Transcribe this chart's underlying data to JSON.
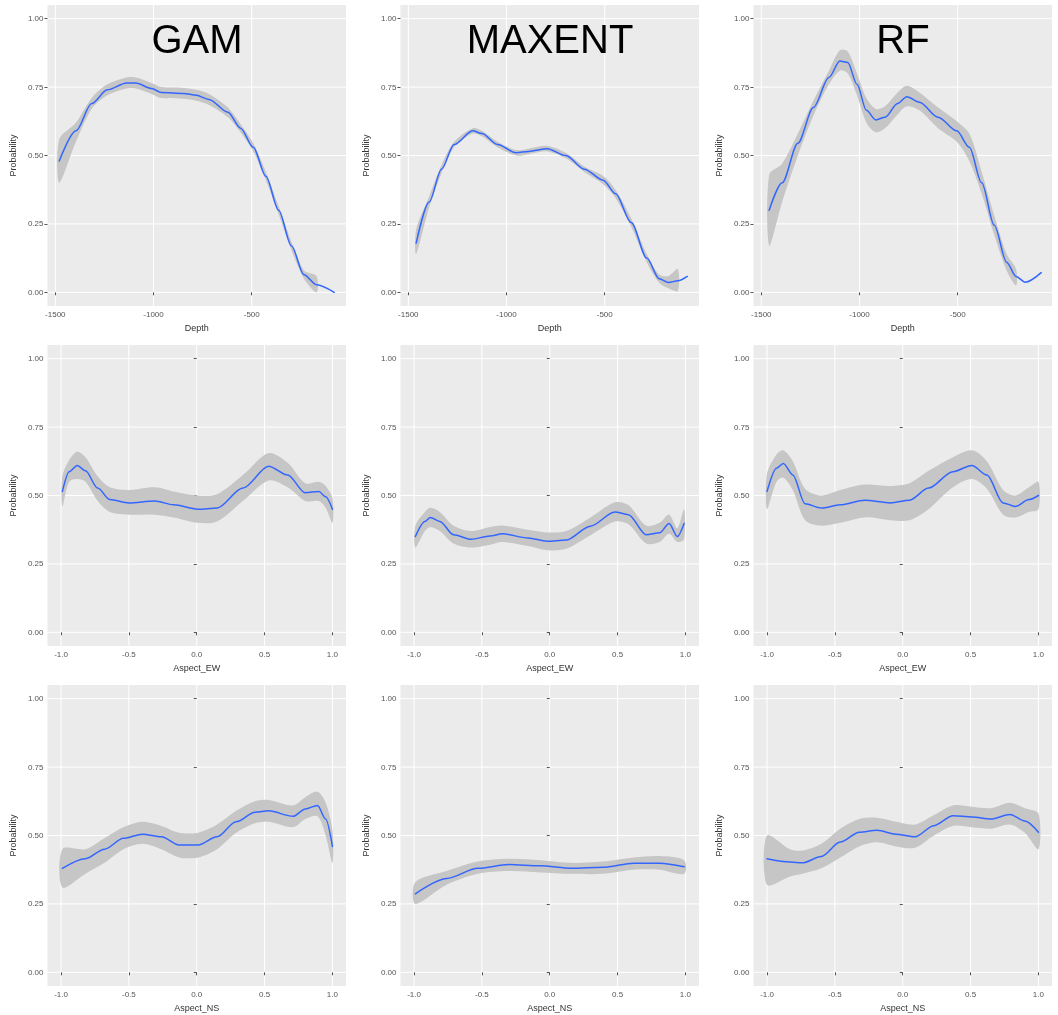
{
  "chart_data": [
    {
      "type": "line",
      "title": "GAM",
      "xlabel": "Depth",
      "ylabel": "Probability",
      "xlim": [
        -1540,
        -20
      ],
      "xticks": [
        -1500,
        -1000,
        -500
      ],
      "ylim": [
        -0.05,
        1.05
      ],
      "yticks": [
        {
          "value": 0,
          "label": "0.00"
        },
        {
          "value": 0.25,
          "label": "0.25"
        },
        {
          "value": 0.5,
          "label": "0.50"
        },
        {
          "value": 0.75,
          "label": "0.75"
        },
        {
          "value": 1,
          "label": "1.00"
        }
      ],
      "grid": true,
      "marker": "none",
      "x": [
        -1480,
        -1395,
        -1315,
        -1235,
        -1137,
        -1090,
        -1010,
        -960,
        -847,
        -782,
        -718,
        -621,
        -557,
        -492,
        -428,
        -363,
        -298,
        -234,
        -170,
        -80
      ],
      "series": [
        {
          "color": "#3366ff",
          "values": [
            0.48,
            0.59,
            0.69,
            0.74,
            0.765,
            0.765,
            0.745,
            0.73,
            0.727,
            0.72,
            0.705,
            0.658,
            0.6,
            0.53,
            0.424,
            0.3,
            0.17,
            0.064,
            0.028,
            0
          ],
          "lower": [
            0.4,
            0.55,
            0.67,
            0.72,
            0.745,
            0.745,
            0.725,
            0.71,
            0.707,
            0.7,
            0.685,
            0.64,
            0.585,
            0.515,
            0.41,
            0.285,
            0.155,
            0.05,
            0,
            null
          ],
          "upper": [
            0.56,
            0.62,
            0.71,
            0.76,
            0.785,
            0.785,
            0.765,
            0.75,
            0.747,
            0.74,
            0.725,
            0.675,
            0.615,
            0.545,
            0.44,
            0.315,
            0.185,
            0.08,
            0.06,
            null
          ]
        }
      ]
    },
    {
      "type": "line",
      "title": "MAXENT",
      "xlabel": "Depth",
      "ylabel": "Probability",
      "xlim": [
        -1540,
        -20
      ],
      "xticks": [
        -1500,
        -1000,
        -500
      ],
      "ylim": [
        -0.05,
        1.05
      ],
      "yticks": [
        {
          "value": 0,
          "label": "0.00"
        },
        {
          "value": 0.25,
          "label": "0.25"
        },
        {
          "value": 0.5,
          "label": "0.50"
        },
        {
          "value": 0.75,
          "label": "0.75"
        },
        {
          "value": 1,
          "label": "1.00"
        }
      ],
      "grid": true,
      "marker": "none",
      "x": [
        -1460,
        -1394,
        -1331,
        -1267,
        -1172,
        -1125,
        -1046,
        -951,
        -888,
        -793,
        -698,
        -604,
        -508,
        -445,
        -365,
        -286,
        -223,
        -175,
        -128,
        -80
      ],
      "series": [
        {
          "color": "#3366ff",
          "values": [
            0.18,
            0.33,
            0.45,
            0.54,
            0.59,
            0.58,
            0.54,
            0.51,
            0.515,
            0.525,
            0.5,
            0.45,
            0.41,
            0.36,
            0.255,
            0.125,
            0.05,
            0.036,
            0.042,
            0.058
          ],
          "lower": [
            0.14,
            0.31,
            0.435,
            0.53,
            0.58,
            0.57,
            0.53,
            0.5,
            0.505,
            0.515,
            0.49,
            0.44,
            0.395,
            0.345,
            0.24,
            0.11,
            0.035,
            0.015,
            0.005,
            null
          ],
          "upper": [
            0.23,
            0.35,
            0.465,
            0.55,
            0.6,
            0.59,
            0.55,
            0.52,
            0.525,
            0.535,
            0.51,
            0.46,
            0.425,
            0.375,
            0.27,
            0.14,
            0.065,
            0.06,
            0.085,
            null
          ]
        }
      ]
    },
    {
      "type": "line",
      "title": "RF",
      "xlabel": "Depth",
      "ylabel": "Probability",
      "xlim": [
        -1540,
        -20
      ],
      "xticks": [
        -1500,
        -1000,
        -500
      ],
      "ylim": [
        -0.05,
        1.05
      ],
      "yticks": [
        {
          "value": 0,
          "label": "0.00"
        },
        {
          "value": 0.25,
          "label": "0.25"
        },
        {
          "value": 0.5,
          "label": "0.50"
        },
        {
          "value": 0.75,
          "label": "0.75"
        },
        {
          "value": 1,
          "label": "1.00"
        }
      ],
      "grid": true,
      "marker": "none",
      "x": [
        -1460,
        -1394,
        -1314,
        -1235,
        -1156,
        -1100,
        -1060,
        -1013,
        -965,
        -917,
        -870,
        -806,
        -759,
        -695,
        -600,
        -505,
        -441,
        -378,
        -314,
        -251,
        -203,
        -156,
        -75
      ],
      "series": [
        {
          "color": "#3366ff",
          "values": [
            0.3,
            0.4,
            0.545,
            0.675,
            0.785,
            0.845,
            0.84,
            0.76,
            0.665,
            0.63,
            0.64,
            0.69,
            0.715,
            0.695,
            0.64,
            0.59,
            0.53,
            0.4,
            0.245,
            0.11,
            0.058,
            0.037,
            0.072
          ],
          "lower": [
            0.17,
            0.33,
            0.5,
            0.645,
            0.76,
            0.81,
            0.8,
            0.72,
            0.62,
            0.585,
            0.6,
            0.65,
            0.68,
            0.665,
            0.6,
            0.55,
            0.48,
            0.36,
            0.21,
            0.08,
            0.025,
            null,
            null
          ],
          "upper": [
            0.43,
            0.47,
            0.58,
            0.7,
            0.81,
            0.885,
            0.88,
            0.8,
            0.71,
            0.67,
            0.68,
            0.73,
            0.755,
            0.73,
            0.675,
            0.625,
            0.58,
            0.44,
            0.28,
            0.14,
            0.085,
            null,
            null
          ]
        }
      ]
    },
    {
      "type": "line",
      "xlabel": "Aspect_EW",
      "ylabel": "Probability",
      "xlim": [
        -1.1,
        1.1
      ],
      "xticks": [
        {
          "value": -1,
          "label": "-1.0"
        },
        {
          "value": -0.5,
          "label": "-0.5"
        },
        {
          "value": 0,
          "label": "0.0"
        },
        {
          "value": 0.5,
          "label": "0.5"
        },
        {
          "value": 1,
          "label": "1.0"
        }
      ],
      "ylim": [
        -0.05,
        1.05
      ],
      "yticks": [
        {
          "value": 0,
          "label": "0.00"
        },
        {
          "value": 0.25,
          "label": "0.25"
        },
        {
          "value": 0.5,
          "label": "0.50"
        },
        {
          "value": 0.75,
          "label": "0.75"
        },
        {
          "value": 1,
          "label": "1.00"
        }
      ],
      "grid": true,
      "marker": "none",
      "x": [
        -0.99,
        -0.94,
        -0.88,
        -0.82,
        -0.73,
        -0.64,
        -0.5,
        -0.31,
        -0.17,
        0.01,
        0.15,
        0.34,
        0.53,
        0.67,
        0.8,
        0.9,
        0.95,
        1.0
      ],
      "series": [
        {
          "color": "#3366ff",
          "values": [
            0.515,
            0.587,
            0.61,
            0.59,
            0.527,
            0.485,
            0.473,
            0.48,
            0.466,
            0.45,
            0.454,
            0.527,
            0.607,
            0.575,
            0.51,
            0.515,
            0.495,
            0.45
          ],
          "lower": [
            0.46,
            0.55,
            0.56,
            0.55,
            0.48,
            0.44,
            0.43,
            0.43,
            0.42,
            0.4,
            0.405,
            0.48,
            0.555,
            0.53,
            0.48,
            0.48,
            0.455,
            0.4
          ],
          "upper": [
            0.57,
            0.63,
            0.66,
            0.64,
            0.57,
            0.53,
            0.52,
            0.53,
            0.515,
            0.5,
            0.505,
            0.575,
            0.655,
            0.62,
            0.545,
            0.55,
            0.535,
            0.49
          ]
        }
      ]
    },
    {
      "type": "line",
      "xlabel": "Aspect_EW",
      "ylabel": "Probability",
      "xlim": [
        -1.1,
        1.1
      ],
      "xticks": [
        {
          "value": -1,
          "label": "-1.0"
        },
        {
          "value": -0.5,
          "label": "-0.5"
        },
        {
          "value": 0,
          "label": "0.0"
        },
        {
          "value": 0.5,
          "label": "0.5"
        },
        {
          "value": 1,
          "label": "1.0"
        }
      ],
      "ylim": [
        -0.05,
        1.05
      ],
      "yticks": [
        {
          "value": 0,
          "label": "0.00"
        },
        {
          "value": 0.25,
          "label": "0.25"
        },
        {
          "value": 0.5,
          "label": "0.50"
        },
        {
          "value": 0.75,
          "label": "0.75"
        },
        {
          "value": 1,
          "label": "1.00"
        }
      ],
      "grid": true,
      "marker": "none",
      "x": [
        -0.99,
        -0.92,
        -0.88,
        -0.81,
        -0.71,
        -0.58,
        -0.44,
        -0.35,
        -0.16,
        -0.02,
        0.12,
        0.3,
        0.48,
        0.58,
        0.71,
        0.81,
        0.88,
        0.94,
        0.99
      ],
      "series": [
        {
          "color": "#3366ff",
          "values": [
            0.35,
            0.405,
            0.42,
            0.405,
            0.357,
            0.34,
            0.352,
            0.36,
            0.345,
            0.333,
            0.337,
            0.388,
            0.44,
            0.43,
            0.357,
            0.364,
            0.398,
            0.35,
            0.398
          ],
          "lower": [
            0.31,
            0.37,
            0.385,
            0.37,
            0.325,
            0.31,
            0.32,
            0.33,
            0.315,
            0.3,
            0.305,
            0.355,
            0.405,
            0.395,
            0.325,
            0.33,
            0.36,
            0.33,
            0.34
          ],
          "upper": [
            0.39,
            0.44,
            0.455,
            0.44,
            0.39,
            0.37,
            0.385,
            0.39,
            0.375,
            0.365,
            0.37,
            0.42,
            0.475,
            0.465,
            0.39,
            0.4,
            0.43,
            0.38,
            0.45
          ]
        }
      ]
    },
    {
      "type": "line",
      "xlabel": "Aspect_EW",
      "ylabel": "Probability",
      "xlim": [
        -1.1,
        1.1
      ],
      "xticks": [
        {
          "value": -1,
          "label": "-1.0"
        },
        {
          "value": -0.5,
          "label": "-0.5"
        },
        {
          "value": 0,
          "label": "0.0"
        },
        {
          "value": 0.5,
          "label": "0.5"
        },
        {
          "value": 1,
          "label": "1.0"
        }
      ],
      "ylim": [
        -0.05,
        1.05
      ],
      "yticks": [
        {
          "value": 0,
          "label": "0.00"
        },
        {
          "value": 0.25,
          "label": "0.25"
        },
        {
          "value": 0.5,
          "label": "0.50"
        },
        {
          "value": 0.75,
          "label": "0.75"
        },
        {
          "value": 1,
          "label": "1.00"
        }
      ],
      "grid": true,
      "marker": "none",
      "x": [
        -1.0,
        -0.93,
        -0.88,
        -0.81,
        -0.72,
        -0.6,
        -0.46,
        -0.28,
        -0.09,
        0.05,
        0.19,
        0.37,
        0.51,
        0.62,
        0.74,
        0.83,
        0.93,
        1.0
      ],
      "series": [
        {
          "color": "#3366ff",
          "values": [
            0.515,
            0.6,
            0.617,
            0.575,
            0.47,
            0.454,
            0.466,
            0.483,
            0.473,
            0.483,
            0.527,
            0.587,
            0.61,
            0.575,
            0.473,
            0.46,
            0.485,
            0.5
          ],
          "lower": [
            0.45,
            0.55,
            0.565,
            0.52,
            0.41,
            0.39,
            0.4,
            0.42,
            0.41,
            0.41,
            0.45,
            0.53,
            0.56,
            0.525,
            0.43,
            0.42,
            0.44,
            0.45
          ],
          "upper": [
            0.58,
            0.65,
            0.665,
            0.625,
            0.525,
            0.5,
            0.52,
            0.54,
            0.535,
            0.545,
            0.59,
            0.64,
            0.665,
            0.625,
            0.52,
            0.5,
            0.53,
            0.55
          ]
        }
      ]
    },
    {
      "type": "line",
      "xlabel": "Aspect_NS",
      "ylabel": "Probability",
      "xlim": [
        -1.1,
        1.1
      ],
      "xticks": [
        {
          "value": -1,
          "label": "-1.0"
        },
        {
          "value": -0.5,
          "label": "-0.5"
        },
        {
          "value": 0,
          "label": "0.0"
        },
        {
          "value": 0.5,
          "label": "0.5"
        },
        {
          "value": 1,
          "label": "1.0"
        }
      ],
      "ylim": [
        -0.05,
        1.05
      ],
      "yticks": [
        {
          "value": 0,
          "label": "0.00"
        },
        {
          "value": 0.25,
          "label": "0.25"
        },
        {
          "value": 0.5,
          "label": "0.50"
        },
        {
          "value": 0.75,
          "label": "0.75"
        },
        {
          "value": 1,
          "label": "1.00"
        }
      ],
      "grid": true,
      "marker": "none",
      "x": [
        -0.99,
        -0.82,
        -0.68,
        -0.54,
        -0.4,
        -0.26,
        -0.13,
        0.01,
        0.15,
        0.29,
        0.43,
        0.53,
        0.71,
        0.8,
        0.89,
        0.95,
        1.0
      ],
      "series": [
        {
          "color": "#3366ff",
          "values": [
            0.38,
            0.415,
            0.45,
            0.49,
            0.505,
            0.495,
            0.465,
            0.465,
            0.495,
            0.55,
            0.585,
            0.59,
            0.57,
            0.597,
            0.61,
            0.56,
            0.46
          ],
          "lower": [
            0.31,
            0.36,
            0.4,
            0.45,
            0.47,
            0.45,
            0.42,
            0.42,
            0.45,
            0.51,
            0.545,
            0.55,
            0.53,
            0.56,
            0.57,
            0.5,
            0.4
          ],
          "upper": [
            0.45,
            0.45,
            0.49,
            0.53,
            0.55,
            0.535,
            0.51,
            0.51,
            0.54,
            0.59,
            0.625,
            0.63,
            0.61,
            0.64,
            0.66,
            0.62,
            0.52
          ]
        }
      ]
    },
    {
      "type": "line",
      "xlabel": "Aspect_NS",
      "ylabel": "Probability",
      "xlim": [
        -1.1,
        1.1
      ],
      "xticks": [
        {
          "value": -1,
          "label": "-1.0"
        },
        {
          "value": -0.5,
          "label": "-0.5"
        },
        {
          "value": 0,
          "label": "0.0"
        },
        {
          "value": 0.5,
          "label": "0.5"
        },
        {
          "value": 1,
          "label": "1.0"
        }
      ],
      "ylim": [
        -0.05,
        1.05
      ],
      "yticks": [
        {
          "value": 0,
          "label": "0.00"
        },
        {
          "value": 0.25,
          "label": "0.25"
        },
        {
          "value": 0.5,
          "label": "0.50"
        },
        {
          "value": 0.75,
          "label": "0.75"
        },
        {
          "value": 1,
          "label": "1.00"
        }
      ],
      "grid": true,
      "marker": "none",
      "x": [
        -0.99,
        -0.76,
        -0.53,
        -0.3,
        -0.07,
        0.16,
        0.39,
        0.62,
        0.81,
        0.99
      ],
      "series": [
        {
          "color": "#3366ff",
          "values": [
            0.287,
            0.343,
            0.38,
            0.394,
            0.389,
            0.38,
            0.384,
            0.399,
            0.399,
            0.386
          ],
          "lower": [
            0.25,
            0.32,
            0.36,
            0.37,
            0.365,
            0.36,
            0.36,
            0.375,
            0.375,
            0.36
          ],
          "upper": [
            0.33,
            0.37,
            0.405,
            0.415,
            0.41,
            0.4,
            0.405,
            0.42,
            0.425,
            0.41
          ]
        }
      ]
    },
    {
      "type": "line",
      "xlabel": "Aspect_NS",
      "ylabel": "Probability",
      "xlim": [
        -1.1,
        1.1
      ],
      "xticks": [
        {
          "value": -1,
          "label": "-1.0"
        },
        {
          "value": -0.5,
          "label": "-0.5"
        },
        {
          "value": 0,
          "label": "0.0"
        },
        {
          "value": 0.5,
          "label": "0.5"
        },
        {
          "value": 1,
          "label": "1.0"
        }
      ],
      "ylim": [
        -0.05,
        1.05
      ],
      "yticks": [
        {
          "value": 0,
          "label": "0.00"
        },
        {
          "value": 0.25,
          "label": "0.25"
        },
        {
          "value": 0.5,
          "label": "0.50"
        },
        {
          "value": 0.75,
          "label": "0.75"
        },
        {
          "value": 1,
          "label": "1.00"
        }
      ],
      "grid": true,
      "marker": "none",
      "x": [
        -1.0,
        -0.83,
        -0.74,
        -0.6,
        -0.46,
        -0.32,
        -0.19,
        -0.05,
        0.09,
        0.23,
        0.37,
        0.51,
        0.65,
        0.79,
        0.9,
        1.0
      ],
      "series": [
        {
          "color": "#3366ff",
          "values": [
            0.415,
            0.403,
            0.4,
            0.423,
            0.476,
            0.512,
            0.519,
            0.505,
            0.495,
            0.536,
            0.572,
            0.568,
            0.56,
            0.577,
            0.553,
            0.512
          ],
          "lower": [
            0.32,
            0.35,
            0.36,
            0.38,
            0.42,
            0.46,
            0.475,
            0.46,
            0.455,
            0.5,
            0.535,
            0.53,
            0.525,
            0.54,
            0.51,
            0.45
          ],
          "upper": [
            0.5,
            0.45,
            0.445,
            0.47,
            0.525,
            0.56,
            0.565,
            0.55,
            0.54,
            0.575,
            0.61,
            0.605,
            0.6,
            0.62,
            0.6,
            0.58
          ]
        }
      ]
    }
  ]
}
